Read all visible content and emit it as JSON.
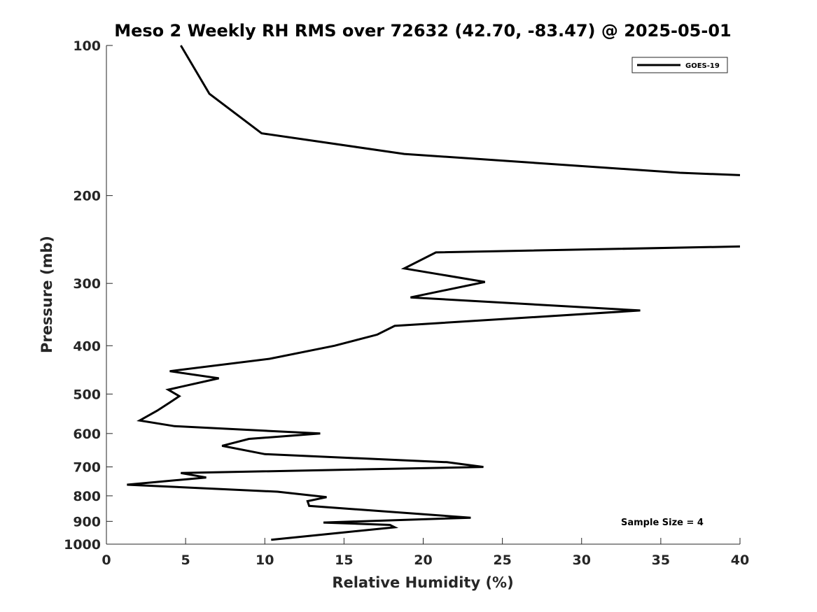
{
  "chart_data": {
    "type": "line",
    "title": "Meso 2 Weekly RH RMS over 72632 (42.70, -83.47) @ 2025-05-01",
    "xlabel": "Relative Humidity (%)",
    "ylabel": "Pressure (mb)",
    "xlim": [
      0,
      40
    ],
    "ylim": [
      100,
      1000
    ],
    "yscale": "log",
    "y_reversed": true,
    "grid": false,
    "legend_position": "top-right",
    "x_ticks": [
      "0",
      "5",
      "10",
      "15",
      "20",
      "25",
      "30",
      "35",
      "40"
    ],
    "y_ticks": [
      "100",
      "200",
      "300",
      "400",
      "500",
      "600",
      "700",
      "800",
      "900",
      "1000"
    ],
    "annotation": "Sample Size = 4",
    "series": [
      {
        "name": "GOES-19",
        "color": "#000000",
        "segments": [
          [
            {
              "x": 4.7,
              "y": 100
            },
            {
              "x": 6.5,
              "y": 125
            },
            {
              "x": 9.8,
              "y": 150
            },
            {
              "x": 18.8,
              "y": 165
            },
            {
              "x": 36.2,
              "y": 180
            },
            {
              "x": 40.0,
              "y": 182
            }
          ],
          [
            {
              "x": 40.0,
              "y": 253
            },
            {
              "x": 20.8,
              "y": 260
            },
            {
              "x": 18.8,
              "y": 280
            },
            {
              "x": 23.9,
              "y": 298
            },
            {
              "x": 19.2,
              "y": 320
            },
            {
              "x": 33.7,
              "y": 340
            },
            {
              "x": 18.2,
              "y": 365
            },
            {
              "x": 17.1,
              "y": 380
            },
            {
              "x": 14.4,
              "y": 400
            },
            {
              "x": 10.3,
              "y": 425
            },
            {
              "x": 4.0,
              "y": 450
            },
            {
              "x": 7.1,
              "y": 465
            },
            {
              "x": 3.9,
              "y": 490
            },
            {
              "x": 4.6,
              "y": 505
            },
            {
              "x": 4.0,
              "y": 520
            },
            {
              "x": 3.2,
              "y": 540
            },
            {
              "x": 2.1,
              "y": 565
            },
            {
              "x": 4.3,
              "y": 580
            },
            {
              "x": 13.5,
              "y": 600
            },
            {
              "x": 9.0,
              "y": 615
            },
            {
              "x": 7.3,
              "y": 635
            },
            {
              "x": 10.0,
              "y": 660
            },
            {
              "x": 21.5,
              "y": 685
            },
            {
              "x": 23.8,
              "y": 700
            },
            {
              "x": 4.7,
              "y": 720
            },
            {
              "x": 6.3,
              "y": 735
            },
            {
              "x": 1.3,
              "y": 760
            },
            {
              "x": 10.8,
              "y": 785
            },
            {
              "x": 13.9,
              "y": 805
            },
            {
              "x": 12.7,
              "y": 820
            },
            {
              "x": 12.8,
              "y": 838
            },
            {
              "x": 23.0,
              "y": 885
            },
            {
              "x": 13.7,
              "y": 905
            },
            {
              "x": 17.9,
              "y": 915
            },
            {
              "x": 18.2,
              "y": 925
            },
            {
              "x": 10.4,
              "y": 980
            }
          ]
        ]
      }
    ]
  }
}
